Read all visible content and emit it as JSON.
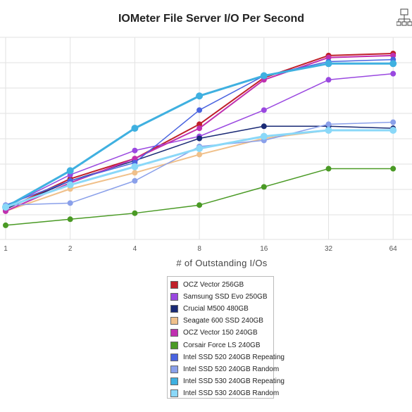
{
  "chart_data": {
    "type": "line",
    "title": "IOMeter File Server I/O Per Second",
    "xlabel": "# of Outstanding I/Os",
    "ylabel": "",
    "x_scale": "log2",
    "categories": [
      "1",
      "2",
      "4",
      "8",
      "16",
      "32",
      "64"
    ],
    "x": [
      1,
      2,
      4,
      8,
      16,
      32,
      64
    ],
    "ylim": [
      0,
      100
    ],
    "grid": true,
    "legend_position": "bottom-center",
    "series": [
      {
        "name": "OCZ Vector 256GB",
        "color": "#c0202a",
        "width": 2,
        "values": [
          15,
          30,
          40,
          57,
          80,
          91,
          92
        ]
      },
      {
        "name": "Samsung SSD Evo 250GB",
        "color": "#9a48e0",
        "width": 1.5,
        "values": [
          16,
          32,
          44,
          51,
          64,
          79,
          82
        ]
      },
      {
        "name": "Crucial M500 480GB",
        "color": "#1a2a75",
        "width": 1.5,
        "values": [
          15,
          29,
          39,
          50,
          56,
          56,
          55
        ]
      },
      {
        "name": "Seagate 600 SSD 240GB",
        "color": "#f0c08a",
        "width": 2,
        "values": [
          14,
          25,
          33,
          42,
          50,
          54,
          54
        ]
      },
      {
        "name": "OCZ Vector 150 240GB",
        "color": "#c030b0",
        "width": 2,
        "values": [
          14,
          28,
          40,
          55,
          79,
          90,
          91
        ]
      },
      {
        "name": "Corsair Force LS 240GB",
        "color": "#4a9a25",
        "width": 1.5,
        "values": [
          7,
          10,
          13,
          17,
          26,
          35,
          35
        ]
      },
      {
        "name": "Intel SSD 520 240GB Repeating",
        "color": "#4a64e0",
        "width": 1.5,
        "values": [
          17,
          29,
          38,
          64,
          81,
          88,
          89
        ]
      },
      {
        "name": "Intel SSD 520 240GB Random",
        "color": "#8aa0ea",
        "width": 1.5,
        "values": [
          17,
          18,
          29,
          46,
          49,
          57,
          58
        ]
      },
      {
        "name": "Intel SSD 530 240GB Repeating",
        "color": "#3fb0e0",
        "width": 3,
        "values": [
          16,
          34,
          55,
          71,
          81,
          87,
          87
        ]
      },
      {
        "name": "Intel SSD 530 240GB Random",
        "color": "#8ad8f8",
        "width": 3,
        "values": [
          16,
          27,
          36,
          45,
          51,
          54,
          54
        ]
      }
    ]
  }
}
